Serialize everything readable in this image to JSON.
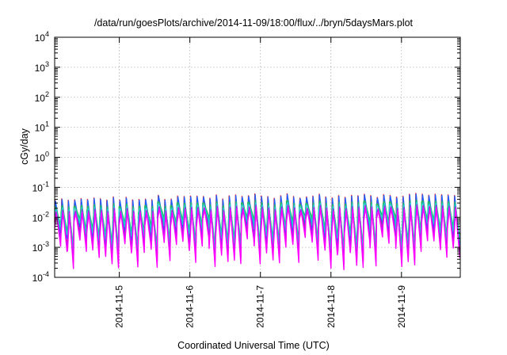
{
  "chart_data": {
    "type": "line",
    "title": "/data/run/goesPlots/archive/2014-11-09/18:00/flux/../bryn/5daysMars.plot",
    "xlabel": "Coordinated Universal Time (UTC)",
    "ylabel": "cGy/day",
    "yscale": "log",
    "ylim": [
      0.0001,
      10000
    ],
    "yticks": [
      {
        "base": "10",
        "exp": "-4",
        "value": 0.0001
      },
      {
        "base": "10",
        "exp": "-3",
        "value": 0.001
      },
      {
        "base": "10",
        "exp": "-2",
        "value": 0.01
      },
      {
        "base": "10",
        "exp": "-1",
        "value": 0.1
      },
      {
        "base": "10",
        "exp": "0",
        "value": 1
      },
      {
        "base": "10",
        "exp": "1",
        "value": 10
      },
      {
        "base": "10",
        "exp": "2",
        "value": 100
      },
      {
        "base": "10",
        "exp": "3",
        "value": 1000
      },
      {
        "base": "10",
        "exp": "4",
        "value": 10000
      }
    ],
    "xlim": [
      "2014-11-04T02:00",
      "2014-11-09T20:00"
    ],
    "xticks": [
      "2014-11-5",
      "2014-11-6",
      "2014-11-7",
      "2014-11-8",
      "2014-11-9"
    ],
    "grid": true,
    "oscillation": {
      "cycles": 63,
      "peak_range": [
        0.035,
        0.075
      ],
      "trough_range": [
        0.0003,
        0.004
      ]
    },
    "series": [
      {
        "color": "#ff2020",
        "peak_factor": 1.0,
        "trough_factor": 1.0
      },
      {
        "color": "#2060ff",
        "peak_factor": 0.95,
        "trough_factor": 1.6
      },
      {
        "color": "#20c060",
        "peak_factor": 0.6,
        "trough_factor": 3.0
      },
      {
        "color": "#20d0d0",
        "peak_factor": 0.5,
        "trough_factor": 2.2
      },
      {
        "color": "#a020f0",
        "peak_factor": 0.42,
        "trough_factor": 0.9
      },
      {
        "color": "#ff00ff",
        "peak_factor": 0.35,
        "trough_factor": 0.6
      }
    ]
  }
}
